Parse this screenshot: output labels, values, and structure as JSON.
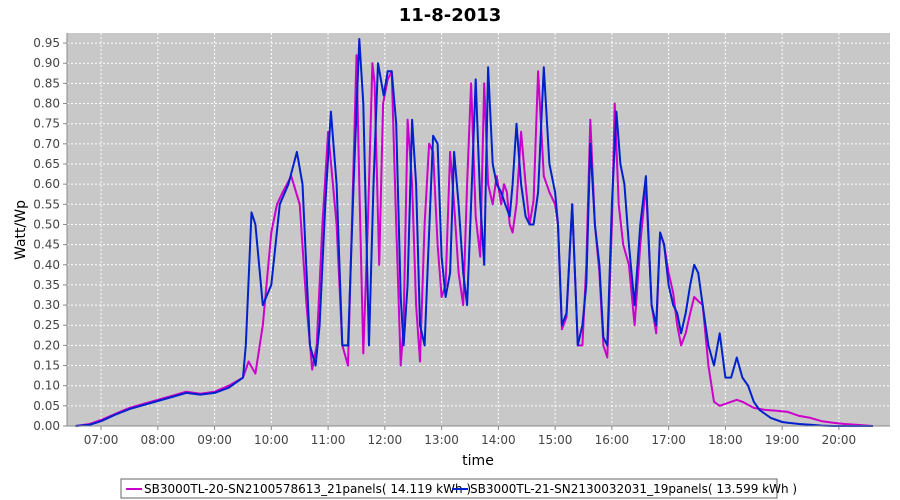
{
  "chart_data": {
    "type": "line",
    "title": "11-8-2013",
    "xlabel": "time",
    "ylabel": "Watt/Wp",
    "xlim": [
      6.4,
      20.9
    ],
    "ylim": [
      0,
      0.975
    ],
    "x_ticks": [
      {
        "value": 7,
        "label": "07:00"
      },
      {
        "value": 8,
        "label": "08:00"
      },
      {
        "value": 9,
        "label": "09:00"
      },
      {
        "value": 10,
        "label": "10:00"
      },
      {
        "value": 11,
        "label": "11:00"
      },
      {
        "value": 12,
        "label": "12:00"
      },
      {
        "value": 13,
        "label": "13:00"
      },
      {
        "value": 14,
        "label": "14:00"
      },
      {
        "value": 15,
        "label": "15:00"
      },
      {
        "value": 16,
        "label": "16:00"
      },
      {
        "value": 17,
        "label": "17:00"
      },
      {
        "value": 18,
        "label": "18:00"
      },
      {
        "value": 19,
        "label": "19:00"
      },
      {
        "value": 20,
        "label": "20:00"
      }
    ],
    "y_ticks": [
      "0.00",
      "0.05",
      "0.10",
      "0.15",
      "0.20",
      "0.25",
      "0.30",
      "0.35",
      "0.40",
      "0.45",
      "0.50",
      "0.55",
      "0.60",
      "0.65",
      "0.70",
      "0.75",
      "0.80",
      "0.85",
      "0.90",
      "0.95"
    ],
    "grid": true,
    "legend_position": "bottom",
    "series": [
      {
        "name": "SB3000TL-20-SN2100578613_21panels( 14.119 kWh )",
        "color": "#cc00cc",
        "x": [
          6.55,
          6.8,
          7.0,
          7.25,
          7.5,
          7.75,
          8.0,
          8.25,
          8.5,
          8.75,
          9.0,
          9.25,
          9.5,
          9.6,
          9.72,
          9.85,
          10.0,
          10.1,
          10.2,
          10.35,
          10.5,
          10.62,
          10.72,
          10.8,
          10.9,
          11.0,
          11.15,
          11.25,
          11.35,
          11.42,
          11.5,
          11.55,
          11.62,
          11.7,
          11.78,
          11.82,
          11.9,
          11.97,
          12.05,
          12.12,
          12.2,
          12.28,
          12.33,
          12.4,
          12.48,
          12.55,
          12.62,
          12.7,
          12.78,
          12.85,
          12.93,
          13.0,
          13.07,
          13.15,
          13.22,
          13.3,
          13.38,
          13.45,
          13.52,
          13.6,
          13.68,
          13.75,
          13.82,
          13.9,
          13.97,
          14.05,
          14.1,
          14.15,
          14.2,
          14.25,
          14.32,
          14.4,
          14.48,
          14.55,
          14.62,
          14.7,
          14.8,
          14.9,
          15.0,
          15.05,
          15.12,
          15.2,
          15.3,
          15.4,
          15.48,
          15.55,
          15.62,
          15.7,
          15.78,
          15.85,
          15.92,
          16.0,
          16.05,
          16.12,
          16.2,
          16.3,
          16.4,
          16.5,
          16.6,
          16.7,
          16.78,
          16.85,
          16.92,
          17.0,
          17.08,
          17.15,
          17.22,
          17.3,
          17.38,
          17.45,
          17.52,
          17.6,
          17.7,
          17.8,
          17.9,
          18.0,
          18.1,
          18.2,
          18.3,
          18.5,
          18.7,
          18.9,
          19.1,
          19.3,
          19.5,
          19.7,
          19.9,
          20.1,
          20.3,
          20.6
        ],
        "y": [
          0.0,
          0.005,
          0.015,
          0.03,
          0.045,
          0.055,
          0.065,
          0.075,
          0.085,
          0.08,
          0.085,
          0.1,
          0.12,
          0.16,
          0.13,
          0.25,
          0.48,
          0.55,
          0.58,
          0.62,
          0.55,
          0.3,
          0.14,
          0.2,
          0.5,
          0.73,
          0.5,
          0.2,
          0.15,
          0.5,
          0.92,
          0.6,
          0.18,
          0.5,
          0.9,
          0.85,
          0.4,
          0.8,
          0.86,
          0.88,
          0.5,
          0.15,
          0.25,
          0.76,
          0.6,
          0.3,
          0.16,
          0.5,
          0.7,
          0.68,
          0.45,
          0.32,
          0.35,
          0.68,
          0.55,
          0.38,
          0.3,
          0.6,
          0.85,
          0.52,
          0.42,
          0.85,
          0.6,
          0.55,
          0.62,
          0.55,
          0.6,
          0.58,
          0.5,
          0.48,
          0.55,
          0.73,
          0.6,
          0.5,
          0.56,
          0.88,
          0.62,
          0.58,
          0.55,
          0.5,
          0.24,
          0.27,
          0.55,
          0.2,
          0.2,
          0.4,
          0.76,
          0.5,
          0.38,
          0.2,
          0.17,
          0.5,
          0.8,
          0.55,
          0.45,
          0.4,
          0.25,
          0.45,
          0.6,
          0.3,
          0.23,
          0.48,
          0.45,
          0.38,
          0.33,
          0.25,
          0.2,
          0.23,
          0.28,
          0.32,
          0.31,
          0.3,
          0.15,
          0.06,
          0.05,
          0.055,
          0.06,
          0.065,
          0.06,
          0.045,
          0.04,
          0.038,
          0.035,
          0.025,
          0.02,
          0.012,
          0.008,
          0.005,
          0.003,
          0.0
        ]
      },
      {
        "name": "SB3000TL-21-SN2130032031_19panels( 13.599 kWh )",
        "color": "#0022cc",
        "x": [
          6.55,
          6.8,
          7.0,
          7.25,
          7.5,
          7.75,
          8.0,
          8.25,
          8.5,
          8.75,
          9.0,
          9.25,
          9.5,
          9.55,
          9.65,
          9.72,
          9.85,
          10.0,
          10.15,
          10.3,
          10.45,
          10.55,
          10.68,
          10.78,
          10.85,
          10.95,
          11.05,
          11.15,
          11.25,
          11.35,
          11.45,
          11.55,
          11.62,
          11.72,
          11.8,
          11.88,
          11.98,
          12.05,
          12.12,
          12.2,
          12.28,
          12.33,
          12.4,
          12.48,
          12.55,
          12.62,
          12.7,
          12.78,
          12.85,
          12.93,
          13.0,
          13.07,
          13.15,
          13.22,
          13.3,
          13.38,
          13.45,
          13.52,
          13.6,
          13.68,
          13.75,
          13.82,
          13.9,
          13.97,
          14.05,
          14.12,
          14.2,
          14.25,
          14.32,
          14.4,
          14.48,
          14.55,
          14.62,
          14.7,
          14.8,
          14.9,
          15.0,
          15.05,
          15.12,
          15.2,
          15.3,
          15.4,
          15.48,
          15.55,
          15.62,
          15.7,
          15.78,
          15.85,
          15.92,
          16.0,
          16.08,
          16.15,
          16.22,
          16.3,
          16.4,
          16.5,
          16.6,
          16.7,
          16.78,
          16.85,
          16.92,
          17.0,
          17.08,
          17.15,
          17.22,
          17.3,
          17.38,
          17.45,
          17.52,
          17.6,
          17.7,
          17.8,
          17.9,
          18.0,
          18.1,
          18.2,
          18.3,
          18.4,
          18.5,
          18.6,
          18.7,
          18.8,
          18.9,
          19.0,
          19.1,
          19.3,
          19.5,
          19.7,
          19.9,
          20.1,
          20.3,
          20.6
        ],
        "y": [
          0.0,
          0.003,
          0.012,
          0.028,
          0.042,
          0.052,
          0.062,
          0.072,
          0.082,
          0.078,
          0.082,
          0.095,
          0.12,
          0.2,
          0.53,
          0.5,
          0.3,
          0.35,
          0.55,
          0.6,
          0.68,
          0.6,
          0.2,
          0.15,
          0.25,
          0.55,
          0.78,
          0.6,
          0.2,
          0.2,
          0.6,
          0.96,
          0.8,
          0.2,
          0.6,
          0.9,
          0.82,
          0.88,
          0.88,
          0.75,
          0.32,
          0.2,
          0.35,
          0.76,
          0.6,
          0.25,
          0.2,
          0.48,
          0.72,
          0.7,
          0.42,
          0.32,
          0.38,
          0.68,
          0.55,
          0.38,
          0.3,
          0.55,
          0.86,
          0.56,
          0.4,
          0.89,
          0.65,
          0.6,
          0.58,
          0.55,
          0.52,
          0.6,
          0.75,
          0.6,
          0.52,
          0.5,
          0.5,
          0.58,
          0.89,
          0.65,
          0.58,
          0.5,
          0.25,
          0.28,
          0.55,
          0.2,
          0.25,
          0.35,
          0.7,
          0.5,
          0.4,
          0.22,
          0.2,
          0.55,
          0.78,
          0.65,
          0.6,
          0.45,
          0.3,
          0.5,
          0.62,
          0.3,
          0.25,
          0.48,
          0.45,
          0.35,
          0.3,
          0.28,
          0.23,
          0.28,
          0.35,
          0.4,
          0.38,
          0.3,
          0.2,
          0.15,
          0.23,
          0.12,
          0.12,
          0.17,
          0.12,
          0.1,
          0.06,
          0.04,
          0.03,
          0.02,
          0.015,
          0.01,
          0.008,
          0.005,
          0.003,
          0.001,
          0.0,
          0.0,
          0.0,
          0.0
        ]
      }
    ]
  }
}
